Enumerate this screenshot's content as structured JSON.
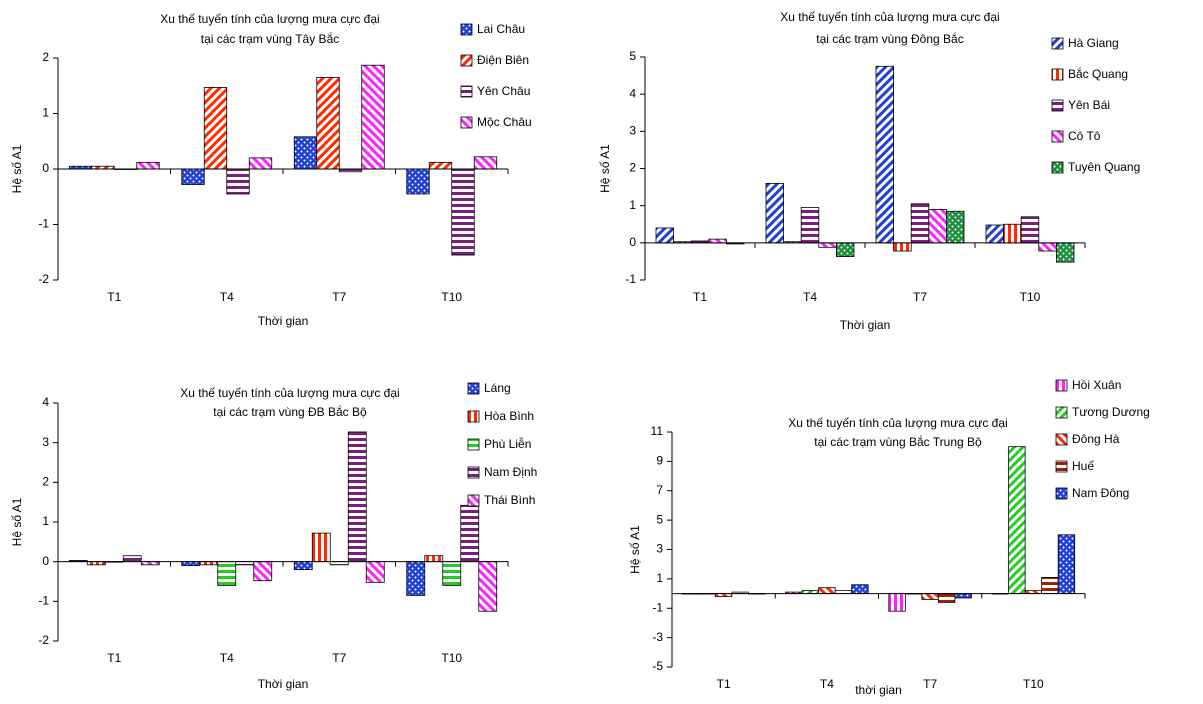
{
  "chart_data": [
    {
      "type": "bar",
      "title": [
        "Xu thế tuyến tính của lượng mưa cực đại",
        "tại các trạm vùng Tây Bắc"
      ],
      "xlabel": "Thời gian",
      "ylabel": "Hệ số A1",
      "categories": [
        "T1",
        "T4",
        "T7",
        "T10"
      ],
      "ylim": [
        -2,
        2
      ],
      "yticks": [
        -2,
        -1,
        0,
        1,
        2
      ],
      "series": [
        {
          "name": "Lai Châu",
          "color": "#1f3fd6",
          "pattern": "dots",
          "values": [
            0.05,
            -0.28,
            0.58,
            -0.45
          ]
        },
        {
          "name": "Điện Biên",
          "color": "#ff2a00",
          "pattern": "diag",
          "values": [
            0.05,
            1.47,
            1.65,
            0.12
          ]
        },
        {
          "name": "Yên Châu",
          "color": "#7a1f7a",
          "pattern": "hstripe",
          "values": [
            0,
            -0.45,
            -0.05,
            -1.55
          ]
        },
        {
          "name": "Mộc Châu",
          "color": "#ff22ff",
          "pattern": "rdiag",
          "values": [
            0.12,
            0.2,
            1.87,
            0.22
          ]
        }
      ]
    },
    {
      "type": "bar",
      "title": [
        "Xu thế tuyến tính của lượng mưa cực đại",
        "tại các trạm vùng Đông Bắc"
      ],
      "xlabel": "Thời gian",
      "ylabel": "Hệ số A1",
      "categories": [
        "T1",
        "T4",
        "T7",
        "T10"
      ],
      "ylim": [
        -1,
        5
      ],
      "yticks": [
        -1,
        0,
        1,
        2,
        3,
        4,
        5
      ],
      "series": [
        {
          "name": "Hà Giang",
          "color": "#1f3fd6",
          "pattern": "diag",
          "values": [
            0.4,
            1.6,
            4.75,
            0.48
          ]
        },
        {
          "name": "Bắc Quang",
          "color": "#ff2a00",
          "pattern": "vstripe",
          "values": [
            0.03,
            0.03,
            -0.22,
            0.5
          ]
        },
        {
          "name": "Yên Bái",
          "color": "#7a1f7a",
          "pattern": "hstripe",
          "values": [
            0.05,
            0.95,
            1.05,
            0.7
          ]
        },
        {
          "name": "Cô Tô",
          "color": "#ff22ff",
          "pattern": "rdiag",
          "values": [
            0.1,
            -0.12,
            0.9,
            -0.22
          ]
        },
        {
          "name": "Tuyên Quang",
          "color": "#1f8f3f",
          "pattern": "dots",
          "values": [
            -0.03,
            -0.37,
            0.85,
            -0.52
          ]
        }
      ]
    },
    {
      "type": "bar",
      "title": [
        "Xu thế tuyến tính của lượng mưa cực đại",
        "tại các trạm vùng ĐB Bắc Bộ"
      ],
      "xlabel": "Thời gian",
      "ylabel": "Hệ số A1",
      "categories": [
        "T1",
        "T4",
        "T7",
        "T10"
      ],
      "ylim": [
        -2,
        4
      ],
      "yticks": [
        -2,
        -1,
        0,
        1,
        2,
        3,
        4
      ],
      "series": [
        {
          "name": "Láng",
          "color": "#1f3fd6",
          "pattern": "dots",
          "values": [
            0.03,
            -0.1,
            -0.2,
            -0.85
          ]
        },
        {
          "name": "Hòa Bình",
          "color": "#ff2a00",
          "pattern": "vstripe",
          "values": [
            -0.08,
            -0.08,
            0.72,
            0.15
          ]
        },
        {
          "name": "Phù Liễn",
          "color": "#22cc22",
          "pattern": "hstripe",
          "values": [
            0,
            -0.6,
            -0.08,
            -0.6
          ]
        },
        {
          "name": "Nam Định",
          "color": "#7a1f7a",
          "pattern": "hstripe",
          "values": [
            0.15,
            -0.08,
            3.27,
            1.42
          ]
        },
        {
          "name": "Thái Bình",
          "color": "#ff22ff",
          "pattern": "rdiag",
          "values": [
            -0.08,
            -0.48,
            -0.52,
            -1.25
          ]
        }
      ]
    },
    {
      "type": "bar",
      "title": [
        "Xu thế tuyến tính của lượng mưa cực đại",
        "tại các trạm vùng Bắc Trung Bộ"
      ],
      "xlabel": "thời gian",
      "ylabel": "Hệ số A1",
      "categories": [
        "T1",
        "T4",
        "T7",
        "T10"
      ],
      "ylim": [
        -5,
        11
      ],
      "yticks": [
        -5,
        -3,
        -1,
        1,
        3,
        5,
        7,
        9,
        11
      ],
      "series": [
        {
          "name": "Hồi Xuân",
          "color": "#ff22ff",
          "pattern": "vstripe",
          "values": [
            0,
            0.1,
            -1.2,
            0
          ]
        },
        {
          "name": "Tương Dương",
          "color": "#22cc22",
          "pattern": "diag",
          "values": [
            0,
            0.2,
            0,
            10
          ]
        },
        {
          "name": "Đông Hà",
          "color": "#ff2a00",
          "pattern": "rdiag",
          "values": [
            -0.2,
            0.4,
            -0.4,
            0.2
          ]
        },
        {
          "name": "Huế",
          "color": "#a02000",
          "pattern": "hstripe",
          "values": [
            0.1,
            0.2,
            -0.6,
            1.1
          ]
        },
        {
          "name": "Nam Đông",
          "color": "#1f3fd6",
          "pattern": "dots",
          "values": [
            0,
            0.6,
            -0.3,
            4
          ]
        }
      ]
    }
  ]
}
